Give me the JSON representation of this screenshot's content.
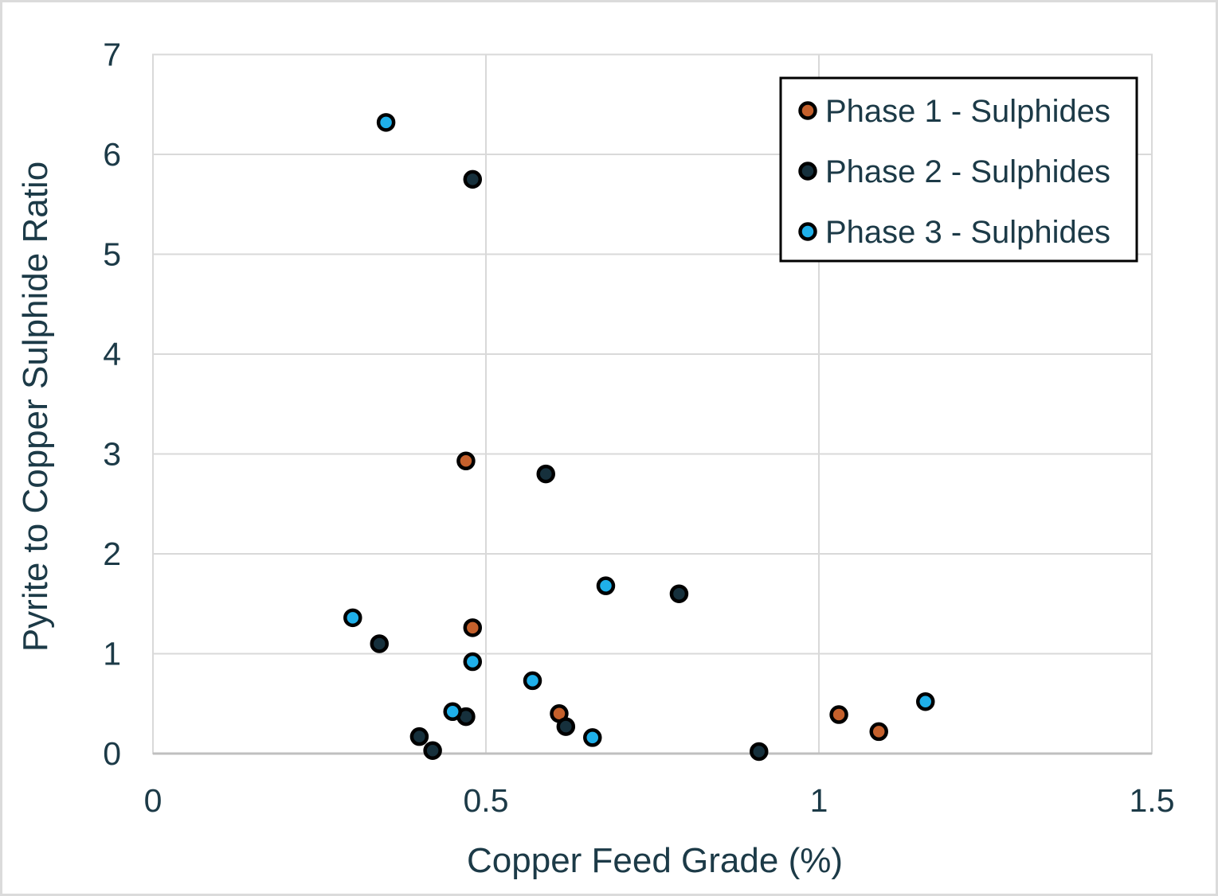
{
  "chart_data": {
    "type": "scatter",
    "title": "",
    "xlabel": "Copper Feed Grade (%)",
    "ylabel": "Pyrite to Copper Sulphide Ratio",
    "xlim": [
      0,
      1.5
    ],
    "ylim": [
      0,
      7
    ],
    "grid": true,
    "legend_position": "top-right",
    "xticks": [
      {
        "value": 0,
        "label": "0"
      },
      {
        "value": 0.5,
        "label": "0.5"
      },
      {
        "value": 1,
        "label": "1"
      },
      {
        "value": 1.5,
        "label": "1.5"
      }
    ],
    "yticks": [
      {
        "value": 0,
        "label": "0"
      },
      {
        "value": 1,
        "label": "1"
      },
      {
        "value": 2,
        "label": "2"
      },
      {
        "value": 3,
        "label": "3"
      },
      {
        "value": 4,
        "label": "4"
      },
      {
        "value": 5,
        "label": "5"
      },
      {
        "value": 6,
        "label": "6"
      },
      {
        "value": 7,
        "label": "7"
      }
    ],
    "series": [
      {
        "name": "Phase 1 - Sulphides",
        "color": "#C4602C",
        "points": [
          [
            0.47,
            2.93
          ],
          [
            0.48,
            1.26
          ],
          [
            0.61,
            0.4
          ],
          [
            1.03,
            0.39
          ],
          [
            1.09,
            0.22
          ]
        ]
      },
      {
        "name": "Phase 2 - Sulphides",
        "color": "#16303C",
        "points": [
          [
            0.48,
            5.75
          ],
          [
            0.59,
            2.8
          ],
          [
            0.79,
            1.6
          ],
          [
            0.34,
            1.1
          ],
          [
            0.47,
            0.37
          ],
          [
            0.4,
            0.17
          ],
          [
            0.42,
            0.03
          ],
          [
            0.62,
            0.27
          ],
          [
            0.91,
            0.02
          ]
        ]
      },
      {
        "name": "Phase 3 - Sulphides",
        "color": "#1FB0EA",
        "points": [
          [
            0.35,
            6.32
          ],
          [
            0.3,
            1.36
          ],
          [
            0.68,
            1.68
          ],
          [
            0.48,
            0.92
          ],
          [
            0.57,
            0.73
          ],
          [
            0.45,
            0.42
          ],
          [
            0.66,
            0.16
          ],
          [
            1.16,
            0.52
          ]
        ]
      }
    ]
  },
  "colors": {
    "text": "#1C3A47",
    "gridline": "#D9D9D9",
    "axis_line": "#BFBFBF",
    "marker_outline": "#000000",
    "legend_border": "#000000",
    "background": "#FFFFFF",
    "frame": "#DBDBDB"
  }
}
